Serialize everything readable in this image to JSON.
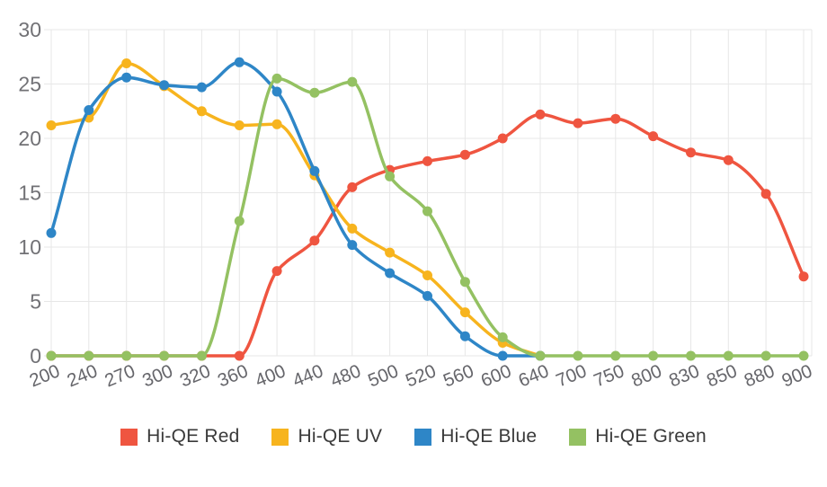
{
  "chart_data": {
    "type": "line",
    "title": "",
    "xlabel": "",
    "ylabel": "",
    "ylim": [
      0,
      30
    ],
    "yticks": [
      0,
      5,
      10,
      15,
      20,
      25,
      30
    ],
    "grid": true,
    "legend_position": "bottom",
    "categories": [
      200,
      240,
      270,
      300,
      320,
      360,
      400,
      440,
      480,
      500,
      520,
      560,
      600,
      640,
      700,
      750,
      800,
      830,
      850,
      880,
      900
    ],
    "series": [
      {
        "name": "Hi-QE Red",
        "color": "#EF5540",
        "values": [
          0,
          0,
          0,
          0,
          0,
          0,
          7.8,
          10.6,
          15.5,
          17.1,
          17.9,
          18.5,
          20.0,
          22.2,
          21.4,
          21.8,
          20.2,
          18.7,
          18.0,
          14.9,
          7.3
        ]
      },
      {
        "name": "Hi-QE UV",
        "color": "#F7B41E",
        "values": [
          21.2,
          21.9,
          26.9,
          24.8,
          22.5,
          21.2,
          21.3,
          16.6,
          11.7,
          9.5,
          7.4,
          4.0,
          1.2,
          0,
          null,
          null,
          null,
          null,
          null,
          null,
          null
        ]
      },
      {
        "name": "Hi-QE Blue",
        "color": "#2E86C7",
        "values": [
          11.3,
          22.6,
          25.6,
          24.9,
          24.7,
          27.0,
          24.3,
          17.0,
          10.2,
          7.6,
          5.5,
          1.8,
          0,
          0,
          null,
          null,
          null,
          null,
          null,
          null,
          null
        ]
      },
      {
        "name": "Hi-QE Green",
        "color": "#94C162",
        "values": [
          0,
          0,
          0,
          0,
          0,
          12.4,
          25.5,
          24.2,
          25.2,
          16.5,
          13.3,
          6.8,
          1.7,
          0,
          0,
          0,
          0,
          0,
          0,
          0,
          0
        ]
      }
    ],
    "style": {
      "grid_color": "#e7e7e7",
      "y_tick_color": "#717175",
      "x_tick_color": "#66666b",
      "legend_text_color": "#3a3a3a",
      "background": "#ffffff"
    }
  }
}
